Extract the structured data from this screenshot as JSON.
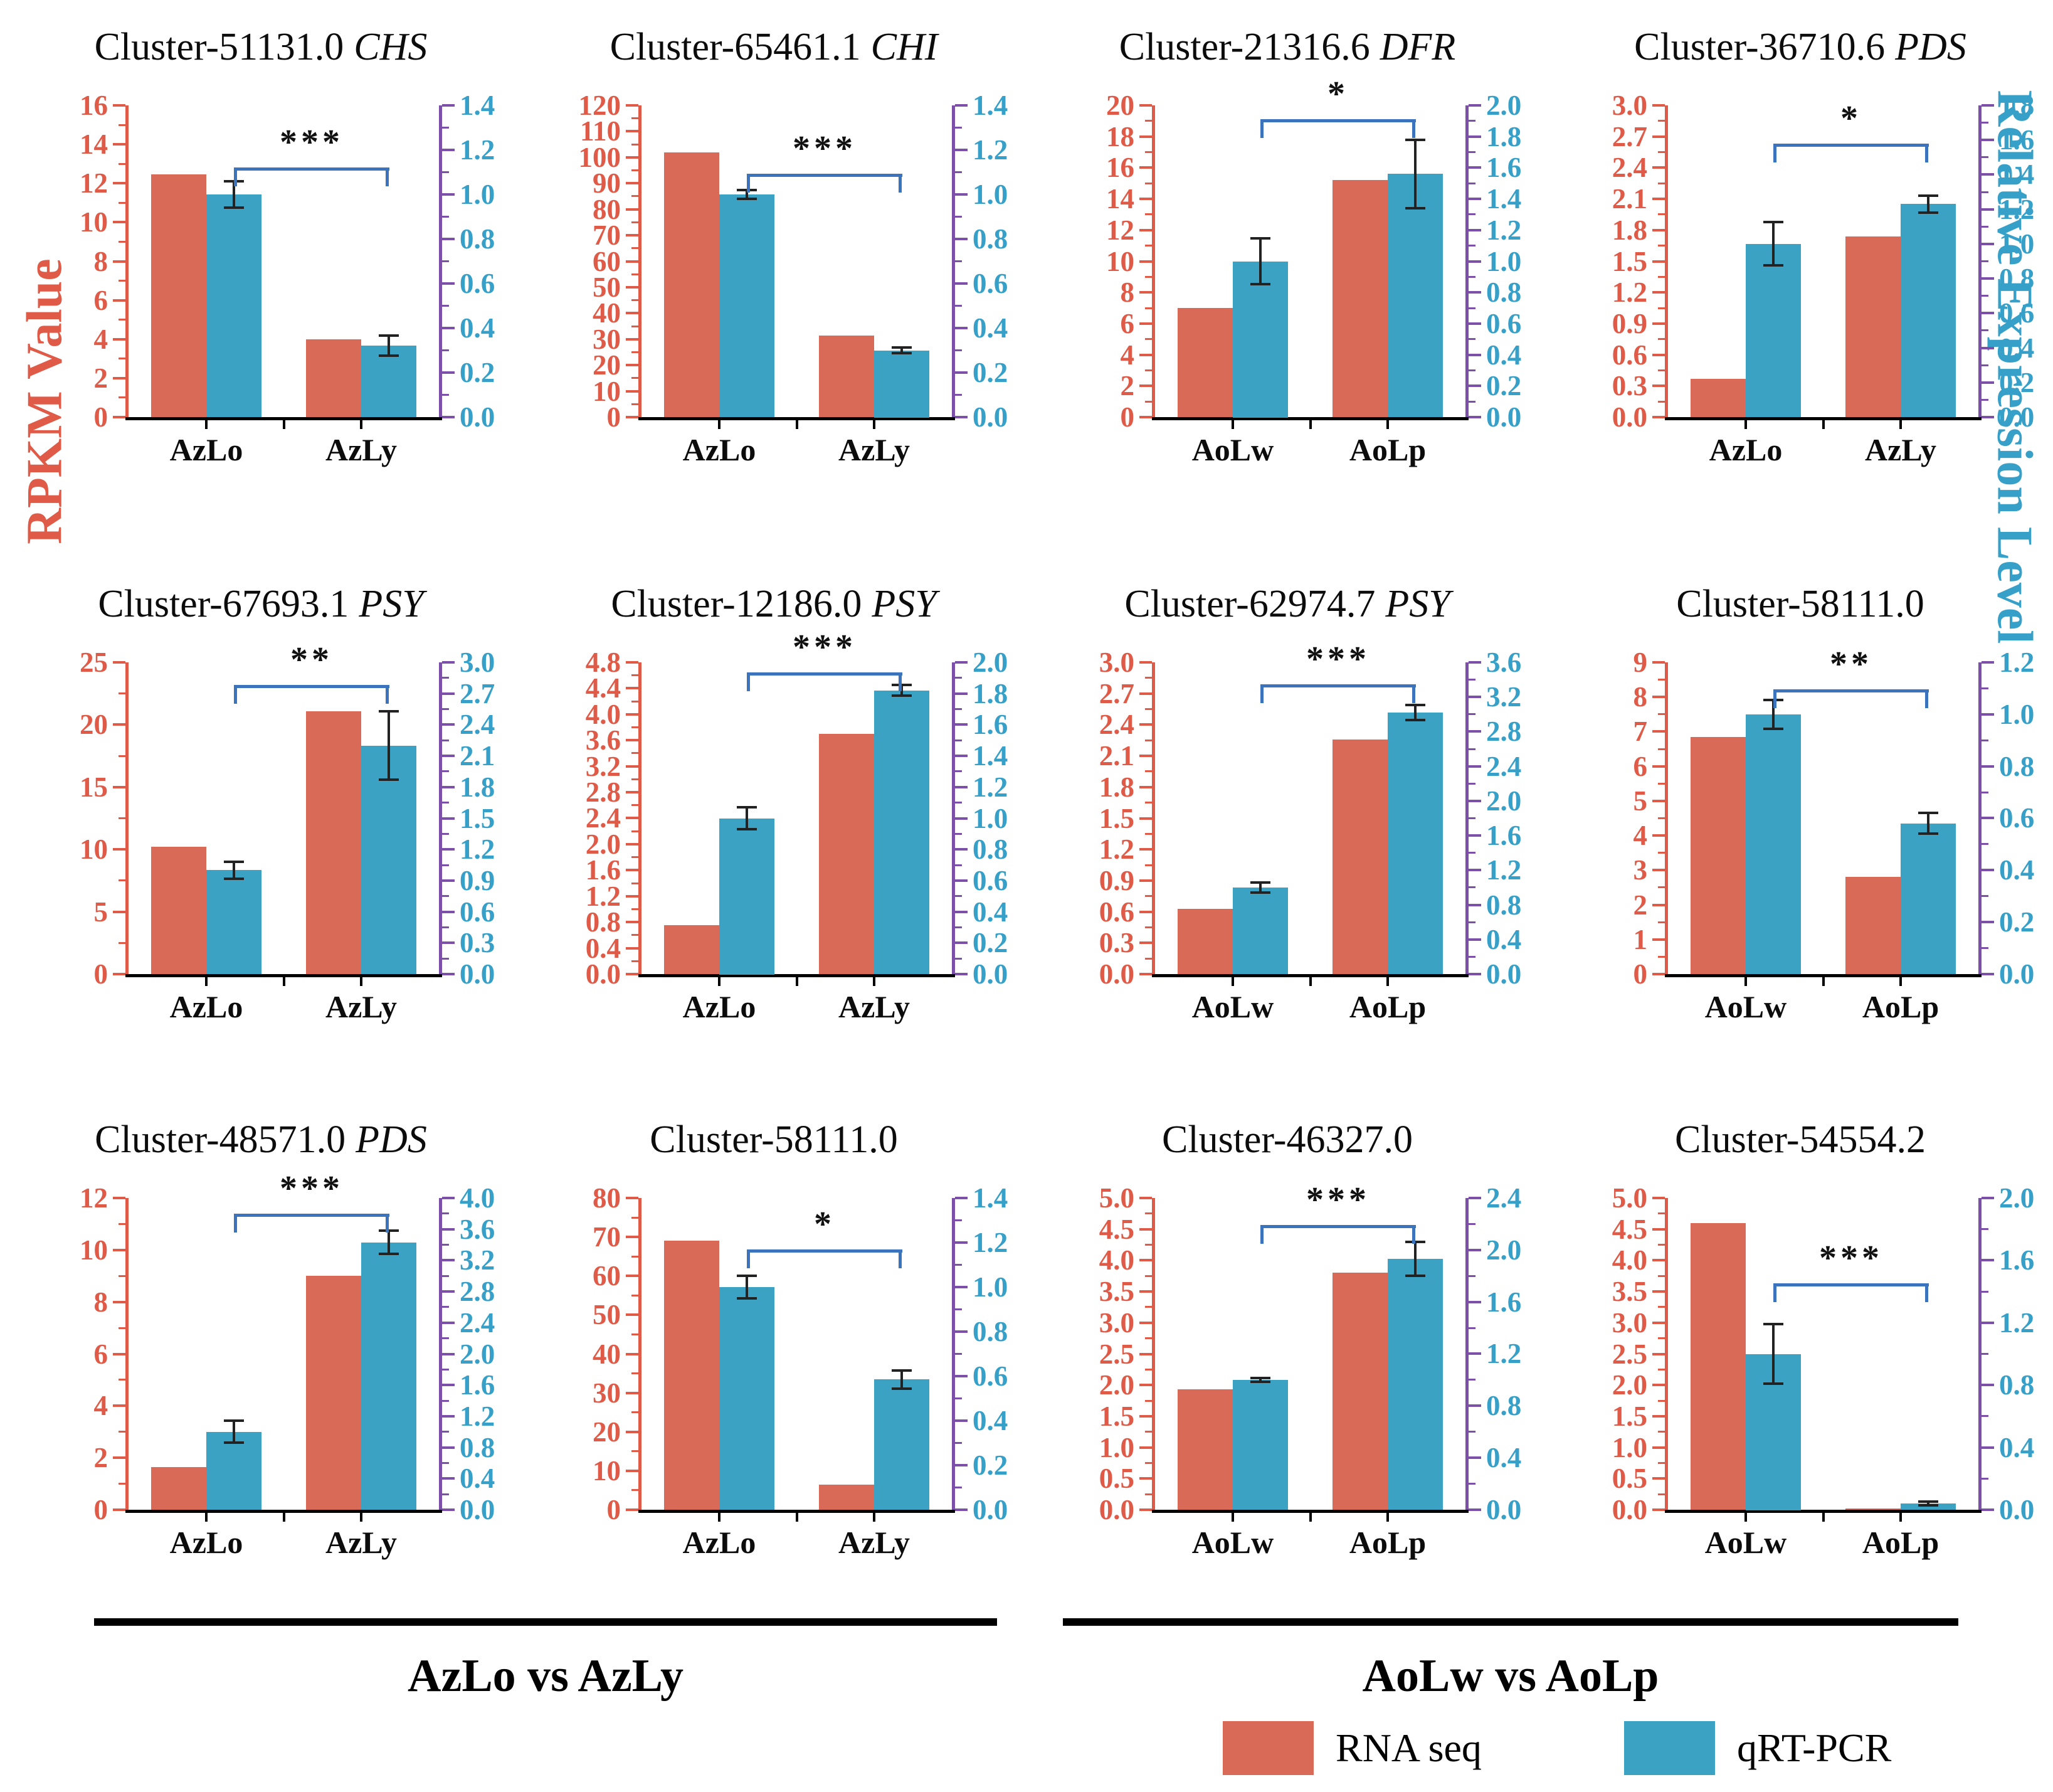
{
  "figure": {
    "left_axis_title": "RPKM Value",
    "right_axis_title": "Relative Expression Level",
    "group_labels": [
      "AzLo vs AzLy",
      "AoLw vs AoLp"
    ],
    "legend": [
      {
        "label": "RNA seq",
        "key": "rna_seq"
      },
      {
        "label": "qRT-PCR",
        "key": "qrt_pcr"
      }
    ]
  },
  "colors": {
    "rna_seq": "#D96A57",
    "qrt_pcr": "#3BA2C3",
    "left_axis": "#DF5A47",
    "right_spine": "#7C4FA8",
    "right_label": "#36A0C8",
    "bottom_axis": "#000000",
    "bracket": "#3B74BC",
    "error_bar": "#222222"
  },
  "chart_data": [
    {
      "type": "bar",
      "title": "Cluster-51131.0",
      "gene": "CHS",
      "categories": [
        "AzLo",
        "AzLy"
      ],
      "left_axis": {
        "min": 0,
        "max": 16,
        "step": 2,
        "decimals": 0
      },
      "right_axis": {
        "min": 0,
        "max": 1.4,
        "step": 0.2,
        "decimals": 1
      },
      "series": [
        {
          "name": "RNA seq",
          "axis": "left",
          "values": [
            12.45,
            4.0
          ]
        },
        {
          "name": "qRT-PCR",
          "axis": "right",
          "values": [
            1.0,
            0.32
          ],
          "errors": [
            0.06,
            0.045
          ]
        }
      ],
      "significance": "***",
      "bracket_frac": 0.8
    },
    {
      "type": "bar",
      "title": "Cluster-65461.1",
      "gene": "CHI",
      "categories": [
        "AzLo",
        "AzLy"
      ],
      "left_axis": {
        "min": 0,
        "max": 120,
        "step": 10,
        "decimals": 0
      },
      "right_axis": {
        "min": 0,
        "max": 1.4,
        "step": 0.2,
        "decimals": 1
      },
      "series": [
        {
          "name": "RNA seq",
          "axis": "left",
          "values": [
            102,
            31.5
          ]
        },
        {
          "name": "qRT-PCR",
          "axis": "right",
          "values": [
            1.0,
            0.3
          ],
          "errors": [
            0.02,
            0.012
          ]
        }
      ],
      "significance": "***",
      "bracket_frac": 0.78
    },
    {
      "type": "bar",
      "title": "Cluster-21316.6",
      "gene": "DFR",
      "categories": [
        "AoLw",
        "AoLp"
      ],
      "left_axis": {
        "min": 0,
        "max": 20,
        "step": 2,
        "decimals": 0
      },
      "right_axis": {
        "min": 0,
        "max": 2.0,
        "step": 0.2,
        "decimals": 1
      },
      "series": [
        {
          "name": "RNA seq",
          "axis": "left",
          "values": [
            7.0,
            15.2
          ]
        },
        {
          "name": "qRT-PCR",
          "axis": "right",
          "values": [
            1.0,
            1.56
          ],
          "errors": [
            0.145,
            0.22
          ]
        }
      ],
      "significance": "*",
      "bracket_frac": 0.955
    },
    {
      "type": "bar",
      "title": "Cluster-36710.6",
      "gene": "PDS",
      "categories": [
        "AzLo",
        "AzLy"
      ],
      "left_axis": {
        "min": 0,
        "max": 3.0,
        "step": 0.3,
        "decimals": 1
      },
      "right_axis": {
        "min": 0,
        "max": 1.8,
        "step": 0.2,
        "decimals": 1
      },
      "series": [
        {
          "name": "RNA seq",
          "axis": "left",
          "values": [
            0.37,
            1.74
          ]
        },
        {
          "name": "qRT-PCR",
          "axis": "right",
          "values": [
            1.0,
            1.23
          ],
          "errors": [
            0.125,
            0.05
          ]
        }
      ],
      "significance": "*",
      "bracket_frac": 0.877
    },
    {
      "type": "bar",
      "title": "Cluster-67693.1",
      "gene": "PSY",
      "categories": [
        "AzLo",
        "AzLy"
      ],
      "left_axis": {
        "min": 0,
        "max": 25,
        "step": 5,
        "decimals": 0
      },
      "right_axis": {
        "min": 0,
        "max": 3.0,
        "step": 0.3,
        "decimals": 1
      },
      "series": [
        {
          "name": "RNA seq",
          "axis": "left",
          "values": [
            10.2,
            21.1
          ]
        },
        {
          "name": "qRT-PCR",
          "axis": "right",
          "values": [
            1.0,
            2.2
          ],
          "errors": [
            0.08,
            0.33
          ]
        }
      ],
      "significance": "**",
      "bracket_frac": 0.928
    },
    {
      "type": "bar",
      "title": "Cluster-12186.0",
      "gene": "PSY",
      "categories": [
        "AzLo",
        "AzLy"
      ],
      "left_axis": {
        "min": 0,
        "max": 4.8,
        "step": 0.4,
        "decimals": 1
      },
      "right_axis": {
        "min": 0,
        "max": 2.0,
        "step": 0.2,
        "decimals": 1
      },
      "series": [
        {
          "name": "RNA seq",
          "axis": "left",
          "values": [
            0.75,
            3.7
          ]
        },
        {
          "name": "qRT-PCR",
          "axis": "right",
          "values": [
            1.0,
            1.82
          ],
          "errors": [
            0.07,
            0.035
          ]
        }
      ],
      "significance": "***",
      "bracket_frac": 0.967
    },
    {
      "type": "bar",
      "title": "Cluster-62974.7",
      "gene": "PSY",
      "categories": [
        "AoLw",
        "AoLp"
      ],
      "left_axis": {
        "min": 0,
        "max": 3.0,
        "step": 0.3,
        "decimals": 1
      },
      "right_axis": {
        "min": 0,
        "max": 3.6,
        "step": 0.4,
        "decimals": 1
      },
      "series": [
        {
          "name": "RNA seq",
          "axis": "left",
          "values": [
            0.63,
            2.26
          ]
        },
        {
          "name": "qRT-PCR",
          "axis": "right",
          "values": [
            1.0,
            3.02
          ],
          "errors": [
            0.06,
            0.09
          ]
        }
      ],
      "significance": "***",
      "bracket_frac": 0.93
    },
    {
      "type": "bar",
      "title": "Cluster-58111.0",
      "gene": "",
      "categories": [
        "AoLw",
        "AoLp"
      ],
      "left_axis": {
        "min": 0,
        "max": 9,
        "step": 1,
        "decimals": 0
      },
      "right_axis": {
        "min": 0,
        "max": 1.2,
        "step": 0.2,
        "decimals": 1
      },
      "series": [
        {
          "name": "RNA seq",
          "axis": "left",
          "values": [
            6.85,
            2.8
          ]
        },
        {
          "name": "qRT-PCR",
          "axis": "right",
          "values": [
            1.0,
            0.58
          ],
          "errors": [
            0.055,
            0.04
          ]
        }
      ],
      "significance": "**",
      "bracket_frac": 0.914
    },
    {
      "type": "bar",
      "title": "Cluster-48571.0",
      "gene": "PDS",
      "categories": [
        "AzLo",
        "AzLy"
      ],
      "left_axis": {
        "min": 0,
        "max": 12,
        "step": 2,
        "decimals": 0
      },
      "right_axis": {
        "min": 0,
        "max": 4.0,
        "step": 0.4,
        "decimals": 1
      },
      "series": [
        {
          "name": "RNA seq",
          "axis": "left",
          "values": [
            1.65,
            9.0
          ]
        },
        {
          "name": "qRT-PCR",
          "axis": "right",
          "values": [
            1.0,
            3.43
          ],
          "errors": [
            0.14,
            0.15
          ]
        }
      ],
      "significance": "***",
      "bracket_frac": 0.95
    },
    {
      "type": "bar",
      "title": "Cluster-58111.0",
      "gene": "",
      "categories": [
        "AzLo",
        "AzLy"
      ],
      "left_axis": {
        "min": 0,
        "max": 80,
        "step": 10,
        "decimals": 0
      },
      "right_axis": {
        "min": 0,
        "max": 1.4,
        "step": 0.2,
        "decimals": 1
      },
      "series": [
        {
          "name": "RNA seq",
          "axis": "left",
          "values": [
            69,
            6.5
          ]
        },
        {
          "name": "qRT-PCR",
          "axis": "right",
          "values": [
            1.0,
            0.585
          ],
          "errors": [
            0.05,
            0.04
          ]
        }
      ],
      "significance": "*",
      "bracket_frac": 0.835
    },
    {
      "type": "bar",
      "title": "Cluster-46327.0",
      "gene": "",
      "categories": [
        "AoLw",
        "AoLp"
      ],
      "left_axis": {
        "min": 0,
        "max": 5.0,
        "step": 0.5,
        "decimals": 1
      },
      "right_axis": {
        "min": 0,
        "max": 2.4,
        "step": 0.4,
        "decimals": 1
      },
      "series": [
        {
          "name": "RNA seq",
          "axis": "left",
          "values": [
            1.93,
            3.8
          ]
        },
        {
          "name": "qRT-PCR",
          "axis": "right",
          "values": [
            1.0,
            1.93
          ],
          "errors": [
            0.015,
            0.13
          ]
        }
      ],
      "significance": "***",
      "bracket_frac": 0.914
    },
    {
      "type": "bar",
      "title": "Cluster-54554.2",
      "gene": "",
      "categories": [
        "AoLw",
        "AoLp"
      ],
      "left_axis": {
        "min": 0,
        "max": 5.0,
        "step": 0.5,
        "decimals": 1
      },
      "right_axis": {
        "min": 0,
        "max": 2.0,
        "step": 0.4,
        "decimals": 1
      },
      "series": [
        {
          "name": "RNA seq",
          "axis": "left",
          "values": [
            4.6,
            0.02
          ]
        },
        {
          "name": "qRT-PCR",
          "axis": "right",
          "values": [
            1.0,
            0.04
          ],
          "errors": [
            0.19,
            0.012
          ]
        }
      ],
      "significance": "***",
      "bracket_frac": 0.726
    }
  ]
}
